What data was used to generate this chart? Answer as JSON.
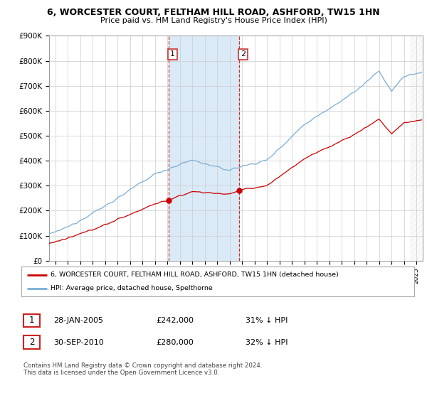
{
  "title": "6, WORCESTER COURT, FELTHAM HILL ROAD, ASHFORD, TW15 1HN",
  "subtitle": "Price paid vs. HM Land Registry's House Price Index (HPI)",
  "ylim": [
    0,
    900000
  ],
  "yticks": [
    0,
    100000,
    200000,
    300000,
    400000,
    500000,
    600000,
    700000,
    800000,
    900000
  ],
  "ytick_labels": [
    "£0",
    "£100K",
    "£200K",
    "£300K",
    "£400K",
    "£500K",
    "£600K",
    "£700K",
    "£800K",
    "£900K"
  ],
  "sale1_date_x": 2005.08,
  "sale1_price": 242000,
  "sale2_date_x": 2010.75,
  "sale2_price": 280000,
  "sale1_label": "1",
  "sale2_label": "2",
  "vline_color": "#cc3333",
  "vband_color": "#dbeaf7",
  "hpi_color": "#7aaed6",
  "price_color": "#cc0000",
  "legend_label_price": "6, WORCESTER COURT, FELTHAM HILL ROAD, ASHFORD, TW15 1HN (detached house)",
  "legend_label_hpi": "HPI: Average price, detached house, Spelthorne",
  "table_row1": [
    "1",
    "28-JAN-2005",
    "£242,000",
    "31% ↓ HPI"
  ],
  "table_row2": [
    "2",
    "30-SEP-2010",
    "£280,000",
    "32% ↓ HPI"
  ],
  "footnote": "Contains HM Land Registry data © Crown copyright and database right 2024.\nThis data is licensed under the Open Government Licence v3.0.",
  "xmin": 1995.5,
  "xmax": 2025.5,
  "background_color": "#ffffff",
  "grid_color": "#cccccc"
}
